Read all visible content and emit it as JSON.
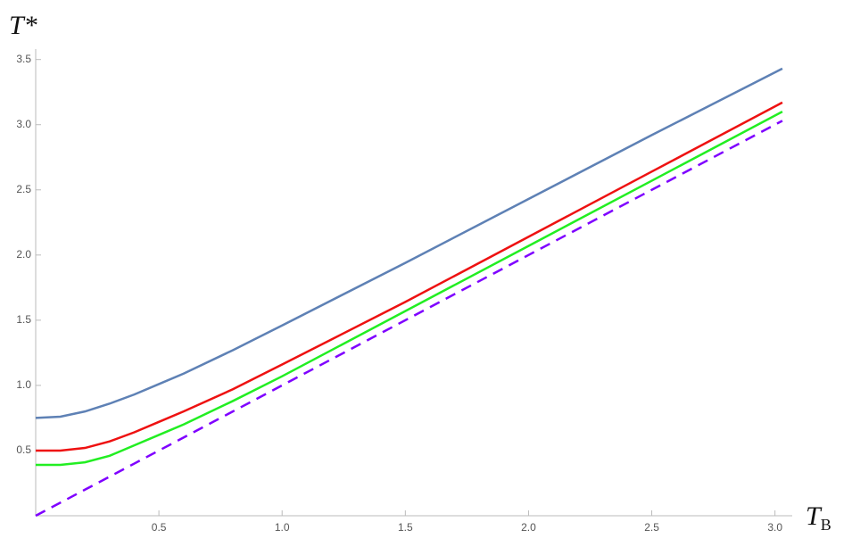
{
  "chart_data": {
    "type": "line",
    "y_label": "T*",
    "x_label": "T",
    "x_label_subscript": "B",
    "x": [
      0,
      0.1,
      0.2,
      0.3,
      0.4,
      0.5,
      0.6,
      0.8,
      1.0,
      1.5,
      2.0,
      2.5,
      3.03
    ],
    "series": [
      {
        "color": "#5e81b5",
        "dashed": false,
        "values": [
          0.75,
          0.76,
          0.8,
          0.86,
          0.93,
          1.01,
          1.09,
          1.27,
          1.46,
          1.94,
          2.43,
          2.92,
          3.43
        ]
      },
      {
        "color": "#ee1111",
        "dashed": false,
        "values": [
          0.5,
          0.5,
          0.52,
          0.57,
          0.64,
          0.72,
          0.8,
          0.97,
          1.16,
          1.64,
          2.14,
          2.64,
          3.17
        ]
      },
      {
        "color": "#22ee22",
        "dashed": false,
        "values": [
          0.39,
          0.39,
          0.41,
          0.46,
          0.54,
          0.62,
          0.7,
          0.88,
          1.07,
          1.57,
          2.07,
          2.57,
          3.1
        ]
      },
      {
        "color": "#7f00ff",
        "dashed": true,
        "values": [
          0,
          0.1,
          0.2,
          0.3,
          0.4,
          0.5,
          0.6,
          0.8,
          1.0,
          1.5,
          2.0,
          2.5,
          3.03
        ]
      }
    ],
    "xlim": [
      0,
      3.07
    ],
    "ylim": [
      0,
      3.58
    ],
    "xticks": [
      0.5,
      {
        "value": 1,
        "label": "1.0"
      },
      1.5,
      {
        "value": 2,
        "label": "2.0"
      },
      2.5,
      {
        "value": 3,
        "label": "3.0"
      }
    ],
    "yticks": [
      0.5,
      {
        "value": 1,
        "label": "1.0"
      },
      1.5,
      {
        "value": 2,
        "label": "2.0"
      },
      2.5,
      {
        "value": 3,
        "label": "3.0"
      },
      3.5
    ],
    "grid": false
  }
}
